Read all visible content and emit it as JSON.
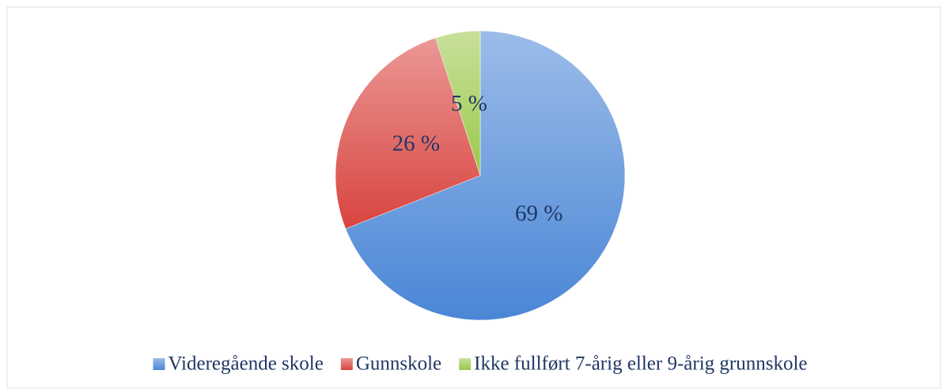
{
  "chart_data": {
    "type": "pie",
    "categories": [
      "Videregående skole",
      "Gunnskole",
      "Ikke fullført 7-årig eller 9-årig grunnskole"
    ],
    "values": [
      69,
      26,
      5
    ],
    "value_labels": [
      "69 %",
      "26 %",
      "5 %"
    ],
    "colors": [
      "#4a86d6",
      "#d9443f",
      "#9bc84a"
    ],
    "legend": "bottom"
  }
}
